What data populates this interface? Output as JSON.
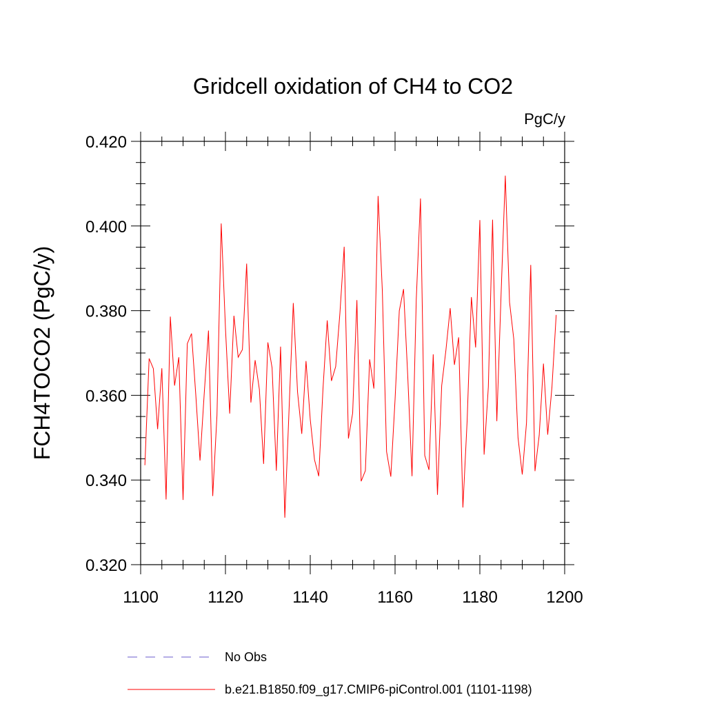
{
  "chart_data": {
    "type": "line",
    "title": "Gridcell oxidation of CH4 to CO2",
    "units": "PgC/y",
    "ylabel": "FCH4TOCO2  (PgC/y)",
    "xlabel": "",
    "xlim": [
      1100,
      1200
    ],
    "ylim": [
      0.32,
      0.42
    ],
    "xticks": [
      1100,
      1120,
      1140,
      1160,
      1180,
      1200
    ],
    "xtick_labels": [
      "1100",
      "1120",
      "1140",
      "1160",
      "1180",
      "1200"
    ],
    "yticks": [
      0.32,
      0.34,
      0.36,
      0.38,
      0.4,
      0.42
    ],
    "ytick_labels": [
      "0.320",
      "0.340",
      "0.360",
      "0.380",
      "0.400",
      "0.420"
    ],
    "legend": [
      {
        "label": "No Obs",
        "color": "#6a5acd",
        "style": "dashed"
      },
      {
        "label": "b.e21.B1850.f09_g17.CMIP6-piControl.001 (1101-1198)",
        "color": "#ff0000",
        "style": "solid"
      }
    ],
    "series": [
      {
        "name": "b.e21.B1850.f09_g17.CMIP6-piControl.001 (1101-1198)",
        "color": "#ff0000",
        "x": [
          1101,
          1102,
          1103,
          1104,
          1105,
          1106,
          1107,
          1108,
          1109,
          1110,
          1111,
          1112,
          1113,
          1114,
          1115,
          1116,
          1117,
          1118,
          1119,
          1120,
          1121,
          1122,
          1123,
          1124,
          1125,
          1126,
          1127,
          1128,
          1129,
          1130,
          1131,
          1132,
          1133,
          1134,
          1135,
          1136,
          1137,
          1138,
          1139,
          1140,
          1141,
          1142,
          1143,
          1144,
          1145,
          1146,
          1147,
          1148,
          1149,
          1150,
          1151,
          1152,
          1153,
          1154,
          1155,
          1156,
          1157,
          1158,
          1159,
          1160,
          1161,
          1162,
          1163,
          1164,
          1165,
          1166,
          1167,
          1168,
          1169,
          1170,
          1171,
          1172,
          1173,
          1174,
          1175,
          1176,
          1177,
          1178,
          1179,
          1180,
          1181,
          1182,
          1183,
          1184,
          1185,
          1186,
          1187,
          1188,
          1189,
          1190,
          1191,
          1192,
          1193,
          1194,
          1195,
          1196,
          1197,
          1198
        ],
        "values": [
          0.3435,
          0.3687,
          0.3663,
          0.352,
          0.3664,
          0.3354,
          0.3786,
          0.3623,
          0.369,
          0.3353,
          0.3722,
          0.3746,
          0.3602,
          0.3446,
          0.3605,
          0.3753,
          0.3362,
          0.3553,
          0.4006,
          0.3759,
          0.3557,
          0.3788,
          0.369,
          0.3708,
          0.3911,
          0.3583,
          0.3683,
          0.3614,
          0.3438,
          0.3725,
          0.3665,
          0.3422,
          0.3715,
          0.3311,
          0.3566,
          0.3818,
          0.3608,
          0.3509,
          0.3681,
          0.3543,
          0.3448,
          0.3409,
          0.3615,
          0.3777,
          0.3634,
          0.3668,
          0.3795,
          0.3951,
          0.3498,
          0.3558,
          0.3825,
          0.3397,
          0.3422,
          0.3685,
          0.3616,
          0.4071,
          0.3847,
          0.3467,
          0.3408,
          0.359,
          0.38,
          0.3851,
          0.3644,
          0.3409,
          0.3826,
          0.4065,
          0.3458,
          0.3424,
          0.3697,
          0.3365,
          0.3623,
          0.3707,
          0.3806,
          0.3672,
          0.3737,
          0.3335,
          0.354,
          0.3832,
          0.3713,
          0.4014,
          0.346,
          0.362,
          0.4015,
          0.3539,
          0.3837,
          0.4119,
          0.382,
          0.3733,
          0.35,
          0.3413,
          0.3535,
          0.3908,
          0.3421,
          0.3506,
          0.3675,
          0.3507,
          0.3619,
          0.379
        ]
      }
    ]
  }
}
